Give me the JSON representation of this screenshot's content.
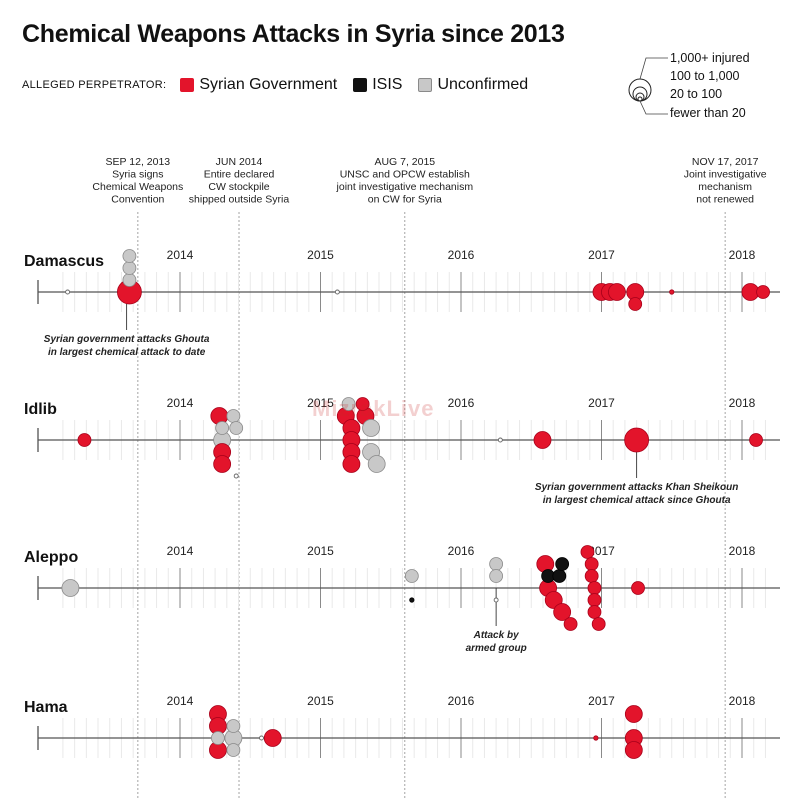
{
  "title": "Chemical Weapons Attacks in Syria since 2013",
  "watermark": "MizrakLive",
  "legend": {
    "lead": "ALLEGED PERPETRATOR:",
    "items": [
      {
        "label": "Syrian Government",
        "color": "#e3142b"
      },
      {
        "label": "ISIS",
        "color": "#111111"
      },
      {
        "label": "Unconfirmed",
        "color": "#c8c8c8"
      }
    ]
  },
  "size_key": [
    "1,000+ injured",
    "100 to 1,000",
    "20 to 100",
    "fewer than 20"
  ],
  "colors": {
    "gov": "#e3142b",
    "isis": "#111111",
    "unconf": "#c8c8c8",
    "unconf_stroke": "#8a8a8a",
    "axis": "#555555"
  },
  "chart_data": {
    "type": "scatter",
    "x_range": [
      "2013-03",
      "2018-03"
    ],
    "year_labels": [
      "2014",
      "2015",
      "2016",
      "2017",
      "2018"
    ],
    "size_classes": [
      "fewer than 20",
      "20 to 100",
      "100 to 1,000",
      "1,000+ injured"
    ],
    "events": [
      {
        "date": "SEP 12, 2013",
        "x": 2013.7,
        "lines": [
          "SEP 12, 2013",
          "Syria signs",
          "Chemical Weapons",
          "Convention"
        ]
      },
      {
        "date": "JUN 2014",
        "x": 2014.42,
        "lines": [
          "JUN 2014",
          "Entire declared",
          "CW stockpile",
          "shipped outside Syria"
        ]
      },
      {
        "date": "AUG 7, 2015",
        "x": 2015.6,
        "lines": [
          "AUG 7, 2015",
          "UNSC and OPCW establish",
          "joint investigative mechanism",
          "on CW for Syria"
        ]
      },
      {
        "date": "NOV 17, 2017",
        "x": 2017.88,
        "lines": [
          "NOV 17, 2017",
          "Joint investigative",
          "mechanism",
          "not renewed"
        ]
      }
    ],
    "regions": [
      {
        "name": "Damascus",
        "notes": [
          {
            "lines": [
              "Syrian government attacks Ghouta",
              "in largest chemical attack to date"
            ],
            "x": 2013.62
          }
        ],
        "attacks": [
          {
            "x": 2013.2,
            "size": 0,
            "who": "unconf",
            "stack": 0
          },
          {
            "x": 2013.64,
            "size": 3,
            "who": "gov",
            "stack": 0
          },
          {
            "x": 2013.64,
            "size": 1,
            "who": "unconf",
            "stack": 1
          },
          {
            "x": 2013.64,
            "size": 1,
            "who": "unconf",
            "stack": 2
          },
          {
            "x": 2013.64,
            "size": 1,
            "who": "unconf",
            "stack": 3
          },
          {
            "x": 2015.12,
            "size": 0,
            "who": "unconf",
            "stack": 0
          },
          {
            "x": 2017.0,
            "size": 2,
            "who": "gov",
            "stack": 0
          },
          {
            "x": 2017.06,
            "size": 2,
            "who": "gov",
            "stack": 0
          },
          {
            "x": 2017.11,
            "size": 2,
            "who": "gov",
            "stack": 0
          },
          {
            "x": 2017.24,
            "size": 2,
            "who": "gov",
            "stack": 0
          },
          {
            "x": 2017.24,
            "size": 1,
            "who": "gov",
            "stack": -1
          },
          {
            "x": 2017.5,
            "size": 0,
            "who": "gov",
            "stack": 0
          },
          {
            "x": 2018.06,
            "size": 2,
            "who": "gov",
            "stack": 0
          },
          {
            "x": 2018.15,
            "size": 1,
            "who": "gov",
            "stack": 0
          }
        ]
      },
      {
        "name": "Idlib",
        "notes": [
          {
            "lines": [
              "Syrian government attacks Khan Sheikoun",
              "in largest chemical attack since Ghouta"
            ],
            "x": 2017.25
          }
        ],
        "attacks": [
          {
            "x": 2013.32,
            "size": 1,
            "who": "gov",
            "stack": 0
          },
          {
            "x": 2014.28,
            "size": 2,
            "who": "gov",
            "stack": 2
          },
          {
            "x": 2014.3,
            "size": 1,
            "who": "unconf",
            "stack": 1
          },
          {
            "x": 2014.3,
            "size": 2,
            "who": "unconf",
            "stack": 0
          },
          {
            "x": 2014.3,
            "size": 2,
            "who": "gov",
            "stack": -1
          },
          {
            "x": 2014.3,
            "size": 2,
            "who": "gov",
            "stack": -2
          },
          {
            "x": 2014.38,
            "size": 1,
            "who": "unconf",
            "stack": 2
          },
          {
            "x": 2014.4,
            "size": 1,
            "who": "unconf",
            "stack": 1
          },
          {
            "x": 2014.4,
            "size": 0,
            "who": "unconf",
            "stack": -3
          },
          {
            "x": 2015.18,
            "size": 2,
            "who": "gov",
            "stack": 2
          },
          {
            "x": 2015.2,
            "size": 1,
            "who": "unconf",
            "stack": 3
          },
          {
            "x": 2015.22,
            "size": 2,
            "who": "gov",
            "stack": 1
          },
          {
            "x": 2015.22,
            "size": 2,
            "who": "gov",
            "stack": 0
          },
          {
            "x": 2015.22,
            "size": 2,
            "who": "gov",
            "stack": -1
          },
          {
            "x": 2015.22,
            "size": 2,
            "who": "gov",
            "stack": -2
          },
          {
            "x": 2015.3,
            "size": 1,
            "who": "gov",
            "stack": 3
          },
          {
            "x": 2015.32,
            "size": 2,
            "who": "gov",
            "stack": 2
          },
          {
            "x": 2015.36,
            "size": 2,
            "who": "unconf",
            "stack": 1
          },
          {
            "x": 2015.36,
            "size": 2,
            "who": "unconf",
            "stack": -1
          },
          {
            "x": 2015.4,
            "size": 2,
            "who": "unconf",
            "stack": -2
          },
          {
            "x": 2016.28,
            "size": 0,
            "who": "unconf",
            "stack": 0
          },
          {
            "x": 2016.58,
            "size": 2,
            "who": "gov",
            "stack": 0
          },
          {
            "x": 2017.25,
            "size": 3,
            "who": "gov",
            "stack": 0
          },
          {
            "x": 2018.1,
            "size": 1,
            "who": "gov",
            "stack": 0
          }
        ]
      },
      {
        "name": "Aleppo",
        "notes": [
          {
            "lines": [
              "Attack by",
              "armed group"
            ],
            "x": 2016.25
          }
        ],
        "attacks": [
          {
            "x": 2013.22,
            "size": 2,
            "who": "unconf",
            "stack": 0
          },
          {
            "x": 2015.65,
            "size": 1,
            "who": "unconf",
            "stack": 1
          },
          {
            "x": 2015.65,
            "size": 0,
            "who": "isis",
            "stack": -1
          },
          {
            "x": 2016.25,
            "size": 1,
            "who": "unconf",
            "stack": 2
          },
          {
            "x": 2016.25,
            "size": 1,
            "who": "unconf",
            "stack": 1
          },
          {
            "x": 2016.25,
            "size": 0,
            "who": "unconf",
            "stack": -1
          },
          {
            "x": 2016.6,
            "size": 2,
            "who": "gov",
            "stack": 2
          },
          {
            "x": 2016.62,
            "size": 1,
            "who": "isis",
            "stack": 1
          },
          {
            "x": 2016.62,
            "size": 2,
            "who": "gov",
            "stack": 0
          },
          {
            "x": 2016.66,
            "size": 2,
            "who": "gov",
            "stack": -1
          },
          {
            "x": 2016.7,
            "size": 1,
            "who": "isis",
            "stack": 1
          },
          {
            "x": 2016.72,
            "size": 2,
            "who": "gov",
            "stack": -2
          },
          {
            "x": 2016.72,
            "size": 1,
            "who": "isis",
            "stack": 2
          },
          {
            "x": 2016.78,
            "size": 1,
            "who": "gov",
            "stack": -3
          },
          {
            "x": 2016.9,
            "size": 1,
            "who": "gov",
            "stack": 3
          },
          {
            "x": 2016.93,
            "size": 1,
            "who": "gov",
            "stack": 2
          },
          {
            "x": 2016.93,
            "size": 1,
            "who": "gov",
            "stack": 1
          },
          {
            "x": 2016.95,
            "size": 1,
            "who": "gov",
            "stack": 0
          },
          {
            "x": 2016.95,
            "size": 1,
            "who": "gov",
            "stack": -1
          },
          {
            "x": 2016.95,
            "size": 1,
            "who": "gov",
            "stack": -2
          },
          {
            "x": 2016.98,
            "size": 1,
            "who": "gov",
            "stack": -3
          },
          {
            "x": 2017.26,
            "size": 1,
            "who": "gov",
            "stack": 0
          }
        ]
      },
      {
        "name": "Hama",
        "notes": [],
        "attacks": [
          {
            "x": 2014.27,
            "size": 2,
            "who": "gov",
            "stack": 2
          },
          {
            "x": 2014.27,
            "size": 2,
            "who": "gov",
            "stack": 1
          },
          {
            "x": 2014.27,
            "size": 1,
            "who": "unconf",
            "stack": 0
          },
          {
            "x": 2014.27,
            "size": 2,
            "who": "gov",
            "stack": -1
          },
          {
            "x": 2014.38,
            "size": 1,
            "who": "unconf",
            "stack": 1
          },
          {
            "x": 2014.38,
            "size": 2,
            "who": "unconf",
            "stack": 0
          },
          {
            "x": 2014.38,
            "size": 1,
            "who": "unconf",
            "stack": -1
          },
          {
            "x": 2014.58,
            "size": 0,
            "who": "unconf",
            "stack": 0
          },
          {
            "x": 2014.66,
            "size": 2,
            "who": "gov",
            "stack": 0
          },
          {
            "x": 2016.96,
            "size": 0,
            "who": "gov",
            "stack": 0
          },
          {
            "x": 2017.23,
            "size": 2,
            "who": "gov",
            "stack": 2
          },
          {
            "x": 2017.23,
            "size": 2,
            "who": "gov",
            "stack": 0
          },
          {
            "x": 2017.23,
            "size": 2,
            "who": "gov",
            "stack": -1
          }
        ]
      }
    ]
  }
}
